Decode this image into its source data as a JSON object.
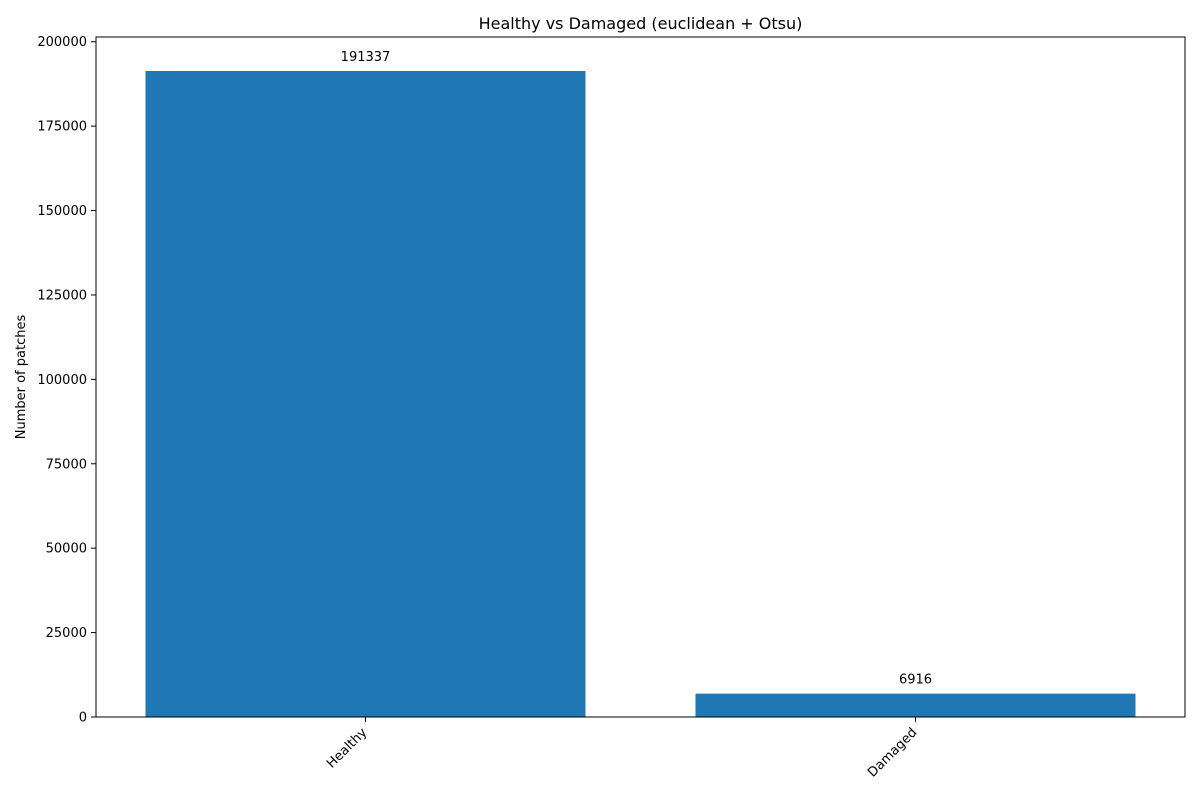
{
  "chart_data": {
    "type": "bar",
    "title": "Healthy vs Damaged (euclidean + Otsu)",
    "xlabel": "",
    "ylabel": "Number of patches",
    "categories": [
      "Healthy",
      "Damaged"
    ],
    "values": [
      191337,
      6916
    ],
    "data_labels": [
      "191337",
      "6916"
    ],
    "ylim": [
      0,
      201404
    ],
    "yticks": [
      0,
      25000,
      50000,
      75000,
      100000,
      125000,
      150000,
      175000,
      200000
    ],
    "ytick_labels": [
      "0",
      "25000",
      "50000",
      "75000",
      "100000",
      "125000",
      "150000",
      "175000",
      "200000"
    ],
    "bar_color": "#1f77b4",
    "grid": false,
    "legend": "none",
    "xtick_rotation_deg": 45
  }
}
